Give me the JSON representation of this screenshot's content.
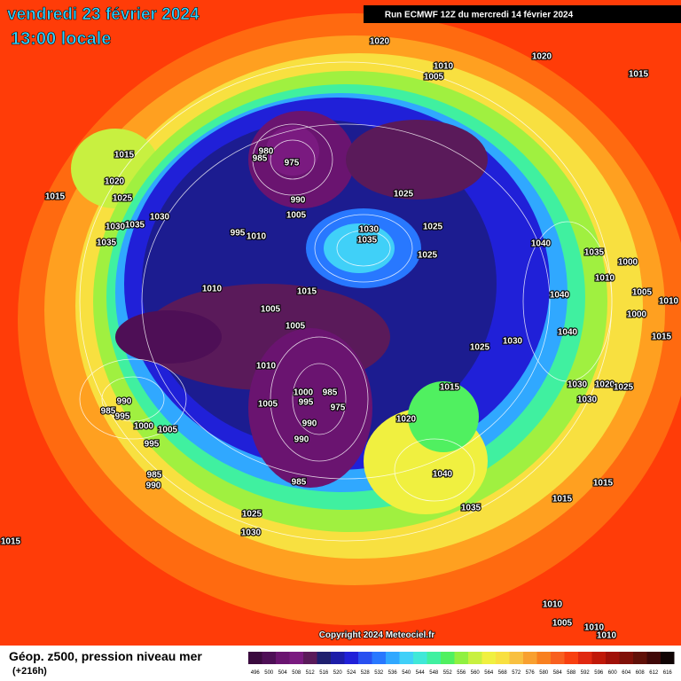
{
  "header": {
    "date": "vendredi 23 février 2024",
    "time": "13:00 locale",
    "run": "Run ECMWF 12Z du mercredi 14 février 2024"
  },
  "copyright": "Copyright 2024 Meteociel.fr",
  "legend": {
    "title": "Géop. z500, pression niveau mer",
    "lead": "(+216h)",
    "levels": [
      496,
      500,
      504,
      508,
      512,
      516,
      520,
      524,
      528,
      532,
      536,
      540,
      544,
      548,
      552,
      556,
      560,
      564,
      568,
      572,
      576,
      580,
      584,
      588,
      592,
      596,
      600,
      604,
      608,
      612,
      616
    ],
    "colors": [
      "#3a0a3e",
      "#4e0f56",
      "#6a1470",
      "#7a1a80",
      "#5a1a5a",
      "#1f1f6e",
      "#1c1ca8",
      "#2020d8",
      "#2850f0",
      "#2878ff",
      "#30a8ff",
      "#40d0f8",
      "#40e8d8",
      "#40f0a0",
      "#50f060",
      "#90f040",
      "#c8f040",
      "#f0f040",
      "#f8e040",
      "#f8c040",
      "#f8a030",
      "#f88020",
      "#f86020",
      "#f84010",
      "#e02810",
      "#c01808",
      "#a01008",
      "#801008",
      "#601008",
      "#400808",
      "#100404"
    ]
  },
  "pressure_labels": [
    1020,
    1020,
    1015,
    1010,
    1005,
    1015,
    1020,
    1025,
    1015,
    1030,
    1035,
    1030,
    1035,
    980,
    985,
    975,
    990,
    1005,
    995,
    1010,
    1025,
    1025,
    1030,
    1035,
    1025,
    1040,
    1035,
    1000,
    1010,
    1015,
    1010,
    1040,
    1005,
    1005,
    1000,
    1005,
    1010,
    1015,
    1040,
    1030,
    1025,
    1010,
    1015,
    1030,
    1020,
    1025,
    1030,
    1000,
    995,
    985,
    975,
    990,
    985,
    995,
    1005,
    990,
    990,
    1020,
    1000,
    1005,
    995,
    1040,
    985,
    990,
    985,
    1035,
    1015,
    1015,
    1025,
    1030,
    1015,
    1010,
    1005,
    1010,
    1010
  ]
}
